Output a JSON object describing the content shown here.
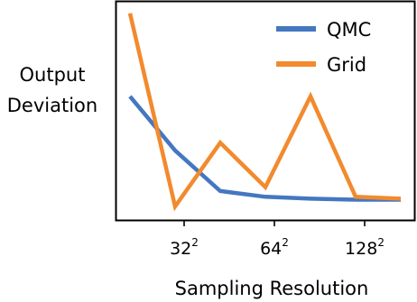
{
  "chart_data": {
    "type": "line",
    "x": [
      1,
      2,
      3,
      4,
      5,
      6,
      7
    ],
    "series": [
      {
        "name": "QMC",
        "color": "#4477c0",
        "values": [
          0.57,
          0.29,
          0.08,
          0.05,
          0.04,
          0.035,
          0.035
        ]
      },
      {
        "name": "Grid",
        "color": "#f28a2e",
        "values": [
          1.0,
          0.0,
          0.33,
          0.1,
          0.57,
          0.05,
          0.04
        ]
      }
    ],
    "xticks": [
      {
        "x": 2.2,
        "base": "32",
        "exp": "2"
      },
      {
        "x": 4.2,
        "base": "64",
        "exp": "2"
      },
      {
        "x": 6.2,
        "base": "128",
        "exp": "2"
      }
    ],
    "xlim": [
      0.7,
      7.3
    ],
    "ylim": [
      -0.07,
      1.06
    ],
    "ylabel_lines": [
      "Output",
      "Deviation"
    ],
    "xlabel": "Sampling Resolution",
    "legend_position": "top-right",
    "grid": false
  }
}
